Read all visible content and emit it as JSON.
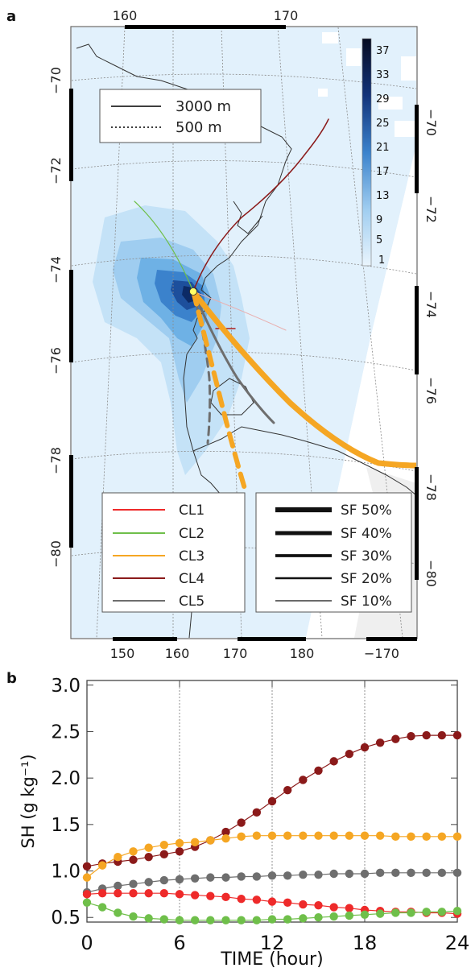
{
  "chart_data": [
    {
      "type": "map",
      "panel_label": "a",
      "top_ticks": [
        "160",
        "170"
      ],
      "bottom_ticks": [
        "150",
        "160",
        "170",
        "180",
        "−170"
      ],
      "left_ticks": [
        "−70",
        "−72",
        "−74",
        "−76",
        "−78",
        "−80"
      ],
      "right_ticks": [
        "−70",
        "−72",
        "−74",
        "−76",
        "−78",
        "−80"
      ],
      "colorbar_ticks": [
        "37",
        "33",
        "29",
        "25",
        "21",
        "17",
        "13",
        "9",
        "5",
        "1"
      ],
      "legend_height": [
        {
          "label": "3000 m",
          "style": "solid"
        },
        {
          "label": "500 m",
          "style": "dotted"
        }
      ],
      "legend_clusters": [
        {
          "label": "CL1",
          "color": "#ee2a2a"
        },
        {
          "label": "CL2",
          "color": "#6fbf4a"
        },
        {
          "label": "CL3",
          "color": "#f5a623"
        },
        {
          "label": "CL4",
          "color": "#8b1a1a"
        },
        {
          "label": "CL5",
          "color": "#6e6e6e"
        }
      ],
      "legend_sf": [
        {
          "label": "SF 50%",
          "value": 50
        },
        {
          "label": "SF 40%",
          "value": 40
        },
        {
          "label": "SF 30%",
          "value": 30
        },
        {
          "label": "SF 20%",
          "value": 20
        },
        {
          "label": "SF 10%",
          "value": 10
        }
      ]
    },
    {
      "type": "line",
      "panel_label": "b",
      "xlabel": "TIME (hour)",
      "ylabel": "SH (g kg⁻¹)",
      "xlim": [
        0,
        24
      ],
      "ylim": [
        0.45,
        3.05
      ],
      "xticks": [
        0,
        6,
        12,
        18,
        24
      ],
      "yticks": [
        0.5,
        1.0,
        1.5,
        2.0,
        2.5,
        3.0
      ],
      "ytick_labels": [
        "0.5",
        "1.0",
        "1.5",
        "2.0",
        "2.5",
        "3.0"
      ],
      "grid_x": [
        6,
        12,
        18
      ],
      "x": [
        0,
        1,
        2,
        3,
        4,
        5,
        6,
        7,
        8,
        9,
        10,
        11,
        12,
        13,
        14,
        15,
        16,
        17,
        18,
        19,
        20,
        21,
        22,
        23,
        24
      ],
      "series": [
        {
          "color": "#8b1a1a",
          "values": [
            1.05,
            1.08,
            1.1,
            1.12,
            1.15,
            1.18,
            1.21,
            1.26,
            1.33,
            1.42,
            1.52,
            1.63,
            1.75,
            1.87,
            1.98,
            2.08,
            2.18,
            2.26,
            2.33,
            2.38,
            2.42,
            2.45,
            2.46,
            2.46,
            2.46
          ]
        },
        {
          "color": "#f5a623",
          "values": [
            0.93,
            1.06,
            1.15,
            1.21,
            1.25,
            1.28,
            1.3,
            1.31,
            1.33,
            1.35,
            1.37,
            1.38,
            1.38,
            1.38,
            1.38,
            1.38,
            1.38,
            1.38,
            1.38,
            1.38,
            1.37,
            1.37,
            1.37,
            1.37,
            1.37
          ]
        },
        {
          "color": "#6e6e6e",
          "values": [
            0.77,
            0.81,
            0.84,
            0.86,
            0.88,
            0.9,
            0.91,
            0.92,
            0.93,
            0.93,
            0.94,
            0.94,
            0.95,
            0.95,
            0.96,
            0.96,
            0.97,
            0.97,
            0.97,
            0.98,
            0.98,
            0.98,
            0.98,
            0.98,
            0.98
          ]
        },
        {
          "color": "#ee2a2a",
          "values": [
            0.75,
            0.76,
            0.76,
            0.76,
            0.76,
            0.76,
            0.75,
            0.74,
            0.73,
            0.72,
            0.7,
            0.69,
            0.67,
            0.66,
            0.64,
            0.63,
            0.61,
            0.6,
            0.58,
            0.57,
            0.56,
            0.56,
            0.55,
            0.55,
            0.54
          ]
        },
        {
          "color": "#6fbf4a",
          "values": [
            0.66,
            0.61,
            0.55,
            0.51,
            0.49,
            0.48,
            0.47,
            0.47,
            0.47,
            0.47,
            0.47,
            0.47,
            0.48,
            0.48,
            0.49,
            0.5,
            0.51,
            0.52,
            0.53,
            0.54,
            0.55,
            0.55,
            0.56,
            0.56,
            0.57
          ]
        }
      ]
    }
  ]
}
